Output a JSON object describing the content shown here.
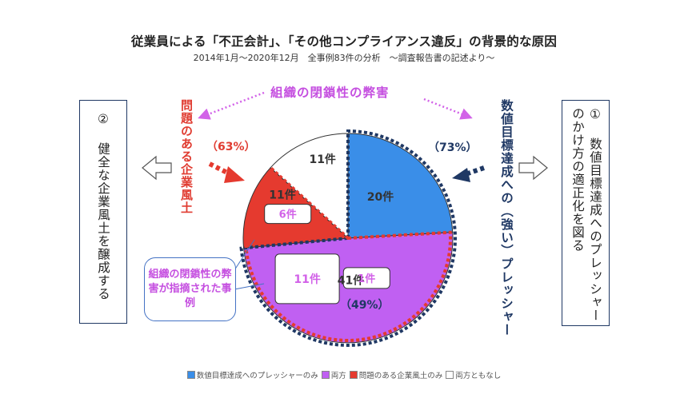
{
  "title": "従業員による「不正会計」、「その他コンプライアンス違反」の背景的な原因",
  "subtitle": "2014年1月～2020年12月　全事例83件の分析　～調査報告書の記述より～",
  "left_box_text": "② 健全な企業風土を醸成する",
  "right_box_text": "① 数値目標達成へのプレッシャーのかけ方の適正化を図る",
  "red_side_label": "問題のある企業風土",
  "red_pct": "（63%）",
  "navy_side_label": "数値目標達成への（強い）プレッシャー",
  "navy_pct": "（73%）",
  "purple_pct": "（49%）",
  "org_closed_label": "組織の閉鎖性の弊害",
  "callout_text": "組織の閉鎖性の弊害が指摘された事例",
  "colors": {
    "blue": "#3a8ee8",
    "purple": "#c060f2",
    "red": "#e53a2f",
    "white": "#ffffff",
    "navy": "#1f3864",
    "magenta": "#d262e8"
  },
  "chart_data": {
    "type": "pie",
    "total": 83,
    "slices": [
      {
        "name": "数値目標達成へのプレッシャーのみ",
        "value": 20,
        "label": "20件",
        "color": "#3a8ee8"
      },
      {
        "name": "両方",
        "value": 41,
        "label": "41件",
        "color": "#c060f2"
      },
      {
        "name": "問題のある企業風土のみ",
        "value": 11,
        "label": "11件",
        "color": "#e53a2f"
      },
      {
        "name": "両方ともなし",
        "value": 11,
        "label": "11件",
        "color": "#ffffff"
      }
    ],
    "sub_labels": [
      {
        "slice": "数値目標達成へのプレッシャーのみ",
        "label": "1件"
      },
      {
        "slice": "両方",
        "label": "11件"
      },
      {
        "slice": "問題のある企業風土のみ",
        "label": "6件"
      }
    ],
    "legend": {
      "placement": "bottom",
      "items": [
        "数値目標達成へのプレッシャーのみ",
        "両方",
        "問題のある企業風土のみ",
        "両方ともなし"
      ]
    }
  }
}
